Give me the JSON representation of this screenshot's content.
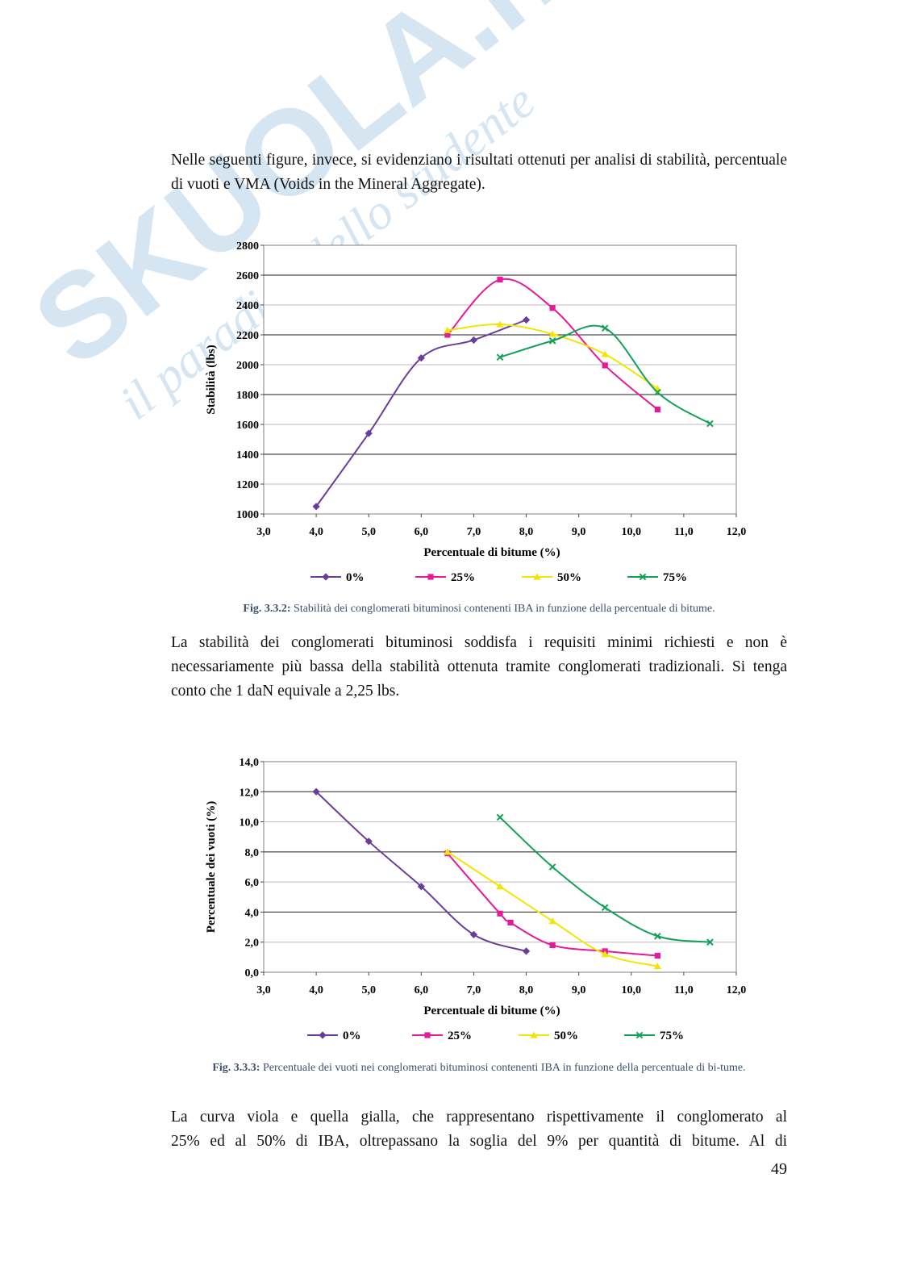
{
  "watermark": {
    "brand": "SKUOLA.net",
    "tagline": "il paradiso dello studente",
    "color": "#7fb4d9"
  },
  "paragraphs": {
    "p1": "Nelle seguenti figure, invece, si evidenziano i risultati ottenuti per analisi di stabilità, percentuale di vuoti e VMA (Voids in the Mineral Aggregate).",
    "p2": "La stabilità dei conglomerati bituminosi soddisfa i requisiti minimi richiesti e non è necessariamente più bassa della stabilità ottenuta tramite conglomerati tradizionali. Si tenga conto che 1 daN equivale a 2,25 lbs.",
    "p3_line1": "La curva viola e quella gialla, che rappresentano rispettivamente il conglomerato al",
    "p3_line2": "25% ed al 50% di IBA, oltrepassano la soglia del 9% per quantità di bitume. Al di"
  },
  "captions": {
    "fig1_label": "Fig. 3.3.2:",
    "fig1_text": "Stabilità dei conglomerati bituminosi contenenti IBA in funzione della percentuale di bitume.",
    "fig2_label": "Fig. 3.3.3:",
    "fig2_text": "Percentuale dei vuoti nei conglomerati bituminosi contenenti IBA in funzione della percentuale di bi-tume."
  },
  "page_number": "49",
  "chart_data": [
    {
      "type": "line",
      "xlabel": "Percentuale di bitume (%)",
      "ylabel": "Stabilità (lbs)",
      "xlim": [
        3,
        12
      ],
      "ylim": [
        1000,
        2800
      ],
      "xticks": [
        "3,0",
        "4,0",
        "5,0",
        "6,0",
        "7,0",
        "8,0",
        "9,0",
        "10,0",
        "11,0",
        "12,0"
      ],
      "yticks": [
        "1000",
        "1200",
        "1400",
        "1600",
        "1800",
        "2000",
        "2200",
        "2400",
        "2600",
        "2800"
      ],
      "grid": "horizontal",
      "legend_position": "bottom",
      "series": [
        {
          "name": "0%",
          "color": "#6a3d9a",
          "marker": "diamond",
          "x": [
            4,
            5,
            6,
            7,
            8
          ],
          "y": [
            1050,
            1540,
            2045,
            2165,
            2300
          ]
        },
        {
          "name": "25%",
          "color": "#e6199b",
          "marker": "square",
          "x": [
            6.5,
            7.5,
            8.5,
            9.5,
            10.5
          ],
          "y": [
            2200,
            2570,
            2380,
            1995,
            1700
          ]
        },
        {
          "name": "50%",
          "color": "#f2e600",
          "marker": "triangle",
          "x": [
            6.5,
            7.5,
            8.5,
            9.5,
            10.5
          ],
          "y": [
            2230,
            2270,
            2205,
            2070,
            1840
          ]
        },
        {
          "name": "75%",
          "color": "#13a15a",
          "marker": "cross",
          "x": [
            7.5,
            8.5,
            9.5,
            10.5,
            11.5
          ],
          "y": [
            2050,
            2160,
            2245,
            1815,
            1605
          ]
        }
      ]
    },
    {
      "type": "line",
      "xlabel": "Percentuale di bitume (%)",
      "ylabel": "Percentuale dei vuoti (%)",
      "xlim": [
        3,
        12
      ],
      "ylim": [
        0,
        14
      ],
      "xticks": [
        "3,0",
        "4,0",
        "5,0",
        "6,0",
        "7,0",
        "8,0",
        "9,0",
        "10,0",
        "11,0",
        "12,0"
      ],
      "yticks": [
        "0,0",
        "2,0",
        "4,0",
        "6,0",
        "8,0",
        "10,0",
        "12,0",
        "14,0"
      ],
      "grid": "horizontal",
      "legend_position": "bottom",
      "series": [
        {
          "name": "0%",
          "color": "#6a3d9a",
          "marker": "diamond",
          "x": [
            4,
            5,
            6,
            7,
            8
          ],
          "y": [
            12.0,
            8.7,
            5.7,
            2.5,
            1.4
          ]
        },
        {
          "name": "25%",
          "color": "#e6199b",
          "marker": "square",
          "x": [
            6.5,
            7.5,
            7.7,
            8.5,
            9.5,
            10.5
          ],
          "y": [
            7.9,
            3.9,
            3.3,
            1.8,
            1.4,
            1.1
          ]
        },
        {
          "name": "50%",
          "color": "#f2e600",
          "marker": "triangle",
          "x": [
            6.5,
            7.5,
            8.5,
            9.5,
            10.5
          ],
          "y": [
            8.0,
            5.7,
            3.4,
            1.2,
            0.4
          ]
        },
        {
          "name": "75%",
          "color": "#13a15a",
          "marker": "cross",
          "x": [
            7.5,
            8.5,
            9.5,
            10.5,
            11.5
          ],
          "y": [
            10.3,
            7.0,
            4.3,
            2.4,
            2.0
          ]
        }
      ]
    }
  ]
}
